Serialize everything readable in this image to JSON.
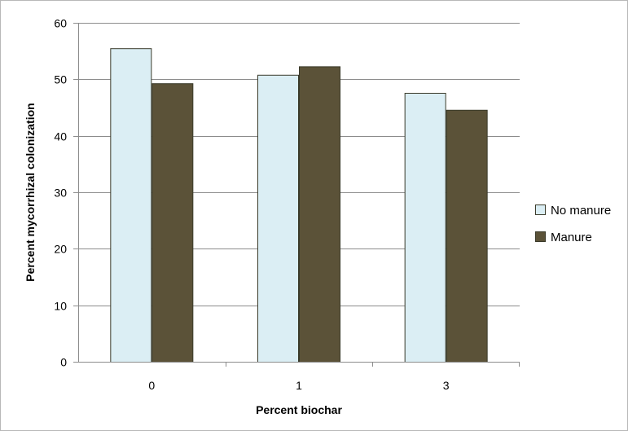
{
  "chart_data": {
    "type": "bar",
    "categories": [
      "0",
      "1",
      "3"
    ],
    "series": [
      {
        "name": "No manure",
        "values": [
          55.5,
          50.8,
          47.6
        ],
        "color": "#dbeef4"
      },
      {
        "name": "Manure",
        "values": [
          49.3,
          52.3,
          44.6
        ],
        "color": "#5b5238"
      }
    ],
    "title": "",
    "xlabel": "Percent biochar",
    "ylabel": "Percent mycorrhizal colonization",
    "ylim": [
      0,
      60
    ],
    "yticks": [
      "0",
      "10",
      "20",
      "30",
      "40",
      "50",
      "60"
    ],
    "grid": true,
    "legend_position": "right"
  }
}
